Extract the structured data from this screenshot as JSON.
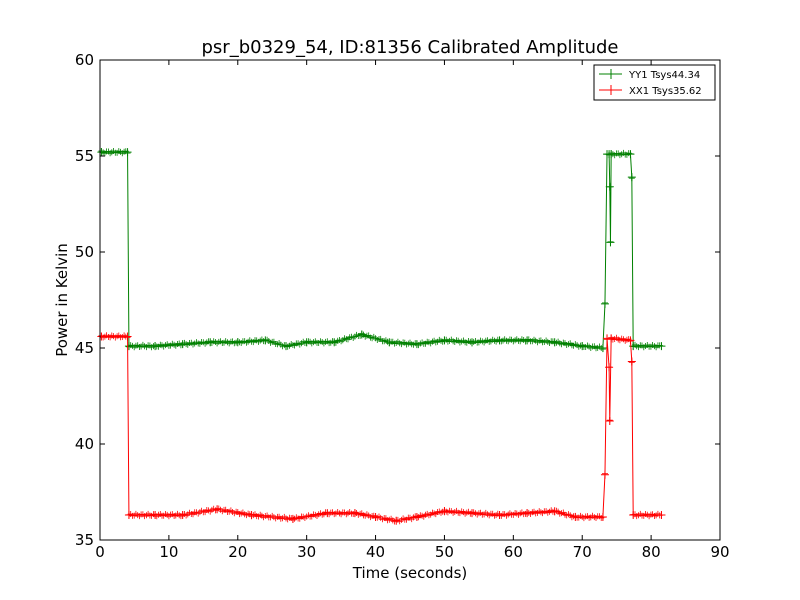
{
  "chart_data": {
    "type": "line",
    "title": "psr_b0329_54, ID:81356 Calibrated Amplitude",
    "xlabel": "Time (seconds)",
    "ylabel": "Power in Kelvin",
    "xlim": [
      0,
      90
    ],
    "ylim": [
      35,
      60
    ],
    "xticks": [
      "0",
      "10",
      "20",
      "30",
      "40",
      "50",
      "60",
      "70",
      "80",
      "90"
    ],
    "yticks": [
      "35",
      "40",
      "45",
      "50",
      "55",
      "60"
    ],
    "grid": false,
    "legend_position": "top-right",
    "series": [
      {
        "name": "YY1 Tsys44.34",
        "color": "#008000",
        "marker": "+",
        "points": [
          [
            0.2,
            55.2
          ],
          [
            4.0,
            55.2
          ],
          [
            4.2,
            45.1
          ],
          [
            8.0,
            45.1
          ],
          [
            12.0,
            45.2
          ],
          [
            16.0,
            45.3
          ],
          [
            20.0,
            45.3
          ],
          [
            24.0,
            45.4
          ],
          [
            27.0,
            45.1
          ],
          [
            30.0,
            45.3
          ],
          [
            34.0,
            45.3
          ],
          [
            38.0,
            45.7
          ],
          [
            42.0,
            45.3
          ],
          [
            46.0,
            45.2
          ],
          [
            50.0,
            45.4
          ],
          [
            54.0,
            45.3
          ],
          [
            58.0,
            45.4
          ],
          [
            62.0,
            45.4
          ],
          [
            66.0,
            45.3
          ],
          [
            70.0,
            45.1
          ],
          [
            73.0,
            45.0
          ],
          [
            73.3,
            47.3
          ],
          [
            73.6,
            55.1
          ],
          [
            73.9,
            55.1
          ],
          [
            74.0,
            53.4
          ],
          [
            74.1,
            50.5
          ],
          [
            74.2,
            55.1
          ],
          [
            77.0,
            55.1
          ],
          [
            77.2,
            53.9
          ],
          [
            77.4,
            45.1
          ],
          [
            81.5,
            45.1
          ]
        ]
      },
      {
        "name": "XX1 Tsys35.62",
        "color": "#ff0000",
        "marker": "+",
        "points": [
          [
            0.2,
            45.6
          ],
          [
            4.0,
            45.6
          ],
          [
            4.2,
            36.3
          ],
          [
            8.0,
            36.3
          ],
          [
            12.0,
            36.3
          ],
          [
            17.0,
            36.6
          ],
          [
            22.0,
            36.3
          ],
          [
            28.0,
            36.1
          ],
          [
            33.0,
            36.4
          ],
          [
            37.0,
            36.4
          ],
          [
            40.0,
            36.2
          ],
          [
            43.0,
            36.0
          ],
          [
            46.0,
            36.2
          ],
          [
            50.0,
            36.5
          ],
          [
            54.0,
            36.4
          ],
          [
            58.0,
            36.3
          ],
          [
            62.0,
            36.4
          ],
          [
            66.0,
            36.5
          ],
          [
            69.0,
            36.2
          ],
          [
            73.0,
            36.2
          ],
          [
            73.3,
            38.4
          ],
          [
            73.6,
            45.5
          ],
          [
            73.9,
            44.0
          ],
          [
            74.0,
            41.2
          ],
          [
            74.2,
            45.5
          ],
          [
            77.0,
            45.4
          ],
          [
            77.2,
            44.3
          ],
          [
            77.4,
            36.3
          ],
          [
            81.5,
            36.3
          ]
        ]
      }
    ]
  }
}
